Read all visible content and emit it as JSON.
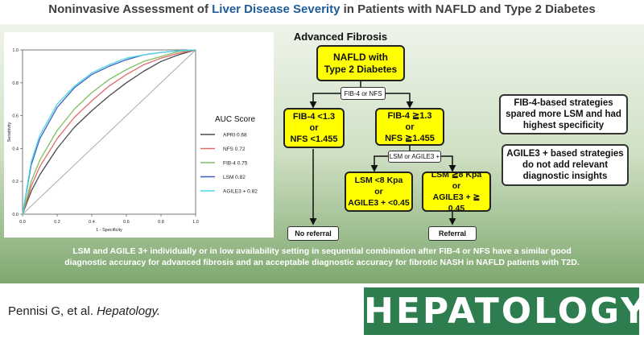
{
  "title": {
    "prefix": "Noninvasive Assessment of ",
    "accent": "Liver Disease Severity",
    "suffix": " in Patients with NAFLD and Type 2 Diabetes"
  },
  "flowchart": {
    "heading": "Advanced Fibrosis",
    "start": [
      "NAFLD with",
      "Type 2 Diabetes"
    ],
    "split1": "FIB-4 or NFS",
    "low_left": [
      "FIB-4 <1.3",
      "or",
      "NFS <1.455"
    ],
    "high_right": [
      "FIB-4 ≧1.3",
      "or",
      "NFS ≧1.455"
    ],
    "split2": "LSM or AGILE3 +",
    "lsm_low": [
      "LSM <8 Kpa",
      "or",
      "AGILE3 + <0.45"
    ],
    "lsm_high": [
      "LSM ≧8 Kpa",
      "or",
      "AGILE3 + ≧ 0.45"
    ],
    "no_referral": "No referral",
    "referral": "Referral"
  },
  "notes": [
    [
      "FIB-4-based strategies",
      "spared more LSM and had",
      "highest specificity"
    ],
    [
      "AGILE3 + based strategies",
      "do not add relevant",
      "diagnostic insights"
    ]
  ],
  "conclusion": [
    "LSM and AGILE 3+ individually or in low availability setting in sequential combination after FIB-4 or NFS have a similar good",
    "diagnostic accuracy for advanced fibrosis and an acceptable diagnostic accuracy for fibrotic NASH in NAFLD patients with T2D."
  ],
  "citation": {
    "authors": "Pennisi G, et al. ",
    "journal": "Hepatology."
  },
  "journal_logo": "HEPATOLOGY",
  "chart_data": {
    "type": "line",
    "title": "",
    "xlabel": "1 - Specificity",
    "ylabel": "Sensitivity",
    "xlim": [
      0,
      1
    ],
    "ylim": [
      0,
      1
    ],
    "xticks": [
      "0.0",
      "0.2",
      "0.4",
      "0.6",
      "0.8",
      "1.0"
    ],
    "yticks": [
      "0.0",
      "0.2",
      "0.4",
      "0.6",
      "0.8",
      "1.0"
    ],
    "grid": false,
    "legend_title": "AUC Score",
    "legend_position": "right",
    "reference_line": true,
    "series": [
      {
        "name": "APRI 0.68",
        "color": "#4a4a4a",
        "x": [
          0,
          0.05,
          0.1,
          0.2,
          0.3,
          0.4,
          0.5,
          0.6,
          0.7,
          0.8,
          0.9,
          1
        ],
        "y": [
          0,
          0.14,
          0.24,
          0.4,
          0.53,
          0.63,
          0.72,
          0.8,
          0.87,
          0.93,
          0.97,
          1
        ]
      },
      {
        "name": "NFS 0.72",
        "color": "#e06a6a",
        "x": [
          0,
          0.05,
          0.1,
          0.2,
          0.3,
          0.4,
          0.5,
          0.6,
          0.7,
          0.8,
          0.9,
          1
        ],
        "y": [
          0,
          0.17,
          0.29,
          0.46,
          0.59,
          0.69,
          0.78,
          0.85,
          0.91,
          0.95,
          0.98,
          1
        ]
      },
      {
        "name": "FIB-4 0.75",
        "color": "#7fbf5f",
        "x": [
          0,
          0.05,
          0.1,
          0.2,
          0.3,
          0.4,
          0.5,
          0.6,
          0.7,
          0.8,
          0.9,
          1
        ],
        "y": [
          0,
          0.2,
          0.33,
          0.51,
          0.64,
          0.74,
          0.82,
          0.88,
          0.93,
          0.96,
          0.99,
          1
        ]
      },
      {
        "name": "LSM 0.82",
        "color": "#3f5fbf",
        "x": [
          0,
          0.05,
          0.1,
          0.2,
          0.3,
          0.4,
          0.5,
          0.6,
          0.7,
          0.8,
          0.9,
          1
        ],
        "y": [
          0,
          0.3,
          0.46,
          0.65,
          0.77,
          0.85,
          0.9,
          0.94,
          0.97,
          0.985,
          0.995,
          1
        ]
      },
      {
        "name": "AGILE3 + 0.82",
        "color": "#4fd6e6",
        "x": [
          0,
          0.05,
          0.1,
          0.2,
          0.3,
          0.4,
          0.5,
          0.6,
          0.7,
          0.8,
          0.9,
          1
        ],
        "y": [
          0,
          0.32,
          0.48,
          0.67,
          0.78,
          0.86,
          0.91,
          0.95,
          0.97,
          0.985,
          0.995,
          1
        ]
      }
    ]
  }
}
